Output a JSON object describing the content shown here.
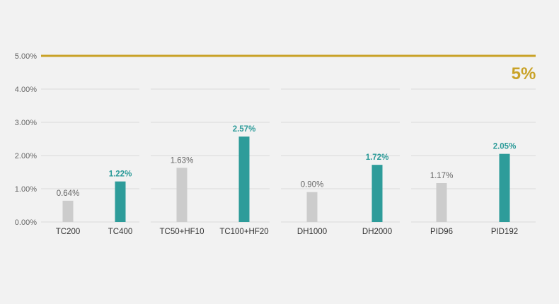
{
  "chart_data": {
    "type": "bar",
    "title": "",
    "xlabel": "",
    "ylabel": "",
    "ylim": [
      0,
      5
    ],
    "y_ticks": [
      "0.00%",
      "1.00%",
      "2.00%",
      "3.00%",
      "4.00%",
      "5.00%"
    ],
    "y_tick_values": [
      0,
      1,
      2,
      3,
      4,
      5
    ],
    "grid": true,
    "categories": [
      "TC200",
      "TC400",
      "TC50+HF10",
      "TC100+HF20",
      "DH1000",
      "DH2000",
      "PID96",
      "PID192"
    ],
    "values": [
      0.64,
      1.22,
      1.63,
      2.57,
      0.9,
      1.72,
      1.17,
      2.05
    ],
    "value_labels": [
      "0.64%",
      "1.22%",
      "1.63%",
      "2.57%",
      "0.90%",
      "1.72%",
      "1.17%",
      "2.05%"
    ],
    "bar_styles": [
      "base",
      "accent",
      "base",
      "accent",
      "base",
      "accent",
      "base",
      "accent"
    ],
    "reference_line": {
      "value": 5,
      "label": "5%"
    },
    "colors": {
      "base": "#cccccc",
      "accent": "#2e9c9a",
      "reference": "#c9a227",
      "grid": "#d9d9d9",
      "background": "#f2f2f2"
    }
  }
}
